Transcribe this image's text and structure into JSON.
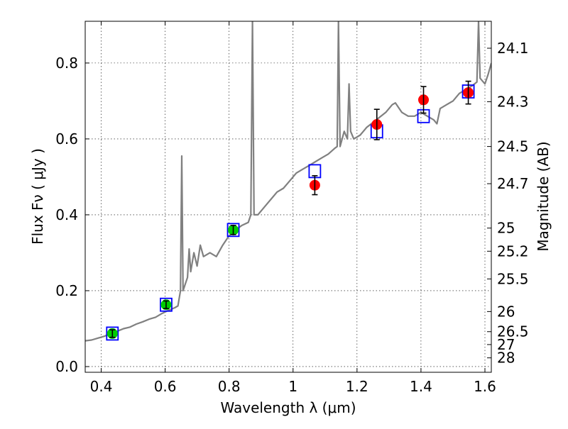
{
  "chart_data": {
    "type": "scatter",
    "title": "",
    "xlabel": "Wavelength  λ (μm)",
    "ylabel": "Flux  Fν  ( μJy )",
    "ylabel_right": "Magnitude (AB)",
    "xlim": [
      0.35,
      1.62
    ],
    "ylim": [
      -0.015,
      0.91
    ],
    "grid": true,
    "x_ticks": [
      {
        "value": 0.4,
        "label": "0.4"
      },
      {
        "value": 0.6,
        "label": "0.6"
      },
      {
        "value": 0.8,
        "label": "0.8"
      },
      {
        "value": 1.0,
        "label": "1"
      },
      {
        "value": 1.2,
        "label": "1.2"
      },
      {
        "value": 1.4,
        "label": "1.4"
      },
      {
        "value": 1.6,
        "label": "1.6"
      }
    ],
    "y_ticks": [
      {
        "value": 0.0,
        "label": "0.0"
      },
      {
        "value": 0.2,
        "label": "0.2"
      },
      {
        "value": 0.4,
        "label": "0.4"
      },
      {
        "value": 0.6,
        "label": "0.6"
      },
      {
        "value": 0.8,
        "label": "0.8"
      }
    ],
    "right_ticks": [
      {
        "label": "24.1",
        "flux": 0.839
      },
      {
        "label": "24.3",
        "flux": 0.698
      },
      {
        "label": "24.5",
        "flux": 0.58
      },
      {
        "label": "24.7",
        "flux": 0.482
      },
      {
        "label": "25",
        "flux": 0.365
      },
      {
        "label": "25.2",
        "flux": 0.304
      },
      {
        "label": "25.5",
        "flux": 0.231
      },
      {
        "label": "26",
        "flux": 0.145
      },
      {
        "label": "26.5",
        "flux": 0.092
      },
      {
        "label": "27",
        "flux": 0.058
      },
      {
        "label": "28",
        "flux": 0.023
      }
    ],
    "series": [
      {
        "kind": "line",
        "color": "#808080",
        "points": [
          [
            0.35,
            0.068
          ],
          [
            0.37,
            0.07
          ],
          [
            0.39,
            0.075
          ],
          [
            0.41,
            0.08
          ],
          [
            0.43,
            0.088
          ],
          [
            0.45,
            0.093
          ],
          [
            0.47,
            0.1
          ],
          [
            0.49,
            0.104
          ],
          [
            0.51,
            0.112
          ],
          [
            0.53,
            0.118
          ],
          [
            0.55,
            0.125
          ],
          [
            0.57,
            0.13
          ],
          [
            0.59,
            0.14
          ],
          [
            0.61,
            0.148
          ],
          [
            0.63,
            0.155
          ],
          [
            0.64,
            0.16
          ],
          [
            0.648,
            0.2
          ],
          [
            0.652,
            0.555
          ],
          [
            0.656,
            0.2
          ],
          [
            0.66,
            0.21
          ],
          [
            0.67,
            0.235
          ],
          [
            0.675,
            0.31
          ],
          [
            0.68,
            0.25
          ],
          [
            0.69,
            0.3
          ],
          [
            0.7,
            0.265
          ],
          [
            0.71,
            0.32
          ],
          [
            0.72,
            0.29
          ],
          [
            0.74,
            0.3
          ],
          [
            0.76,
            0.29
          ],
          [
            0.78,
            0.32
          ],
          [
            0.8,
            0.345
          ],
          [
            0.82,
            0.36
          ],
          [
            0.84,
            0.372
          ],
          [
            0.86,
            0.38
          ],
          [
            0.868,
            0.4
          ],
          [
            0.873,
            0.91
          ],
          [
            0.878,
            0.4
          ],
          [
            0.89,
            0.4
          ],
          [
            0.91,
            0.42
          ],
          [
            0.93,
            0.44
          ],
          [
            0.95,
            0.46
          ],
          [
            0.97,
            0.47
          ],
          [
            0.99,
            0.49
          ],
          [
            1.01,
            0.51
          ],
          [
            1.03,
            0.52
          ],
          [
            1.05,
            0.53
          ],
          [
            1.07,
            0.54
          ],
          [
            1.09,
            0.55
          ],
          [
            1.11,
            0.56
          ],
          [
            1.13,
            0.575
          ],
          [
            1.138,
            0.58
          ],
          [
            1.142,
            0.91
          ],
          [
            1.147,
            0.58
          ],
          [
            1.16,
            0.62
          ],
          [
            1.17,
            0.6
          ],
          [
            1.175,
            0.745
          ],
          [
            1.18,
            0.62
          ],
          [
            1.19,
            0.6
          ],
          [
            1.21,
            0.61
          ],
          [
            1.23,
            0.63
          ],
          [
            1.26,
            0.65
          ],
          [
            1.29,
            0.67
          ],
          [
            1.31,
            0.69
          ],
          [
            1.32,
            0.695
          ],
          [
            1.34,
            0.67
          ],
          [
            1.36,
            0.66
          ],
          [
            1.38,
            0.66
          ],
          [
            1.4,
            0.67
          ],
          [
            1.42,
            0.66
          ],
          [
            1.44,
            0.65
          ],
          [
            1.45,
            0.64
          ],
          [
            1.46,
            0.68
          ],
          [
            1.48,
            0.69
          ],
          [
            1.5,
            0.7
          ],
          [
            1.52,
            0.72
          ],
          [
            1.54,
            0.73
          ],
          [
            1.56,
            0.74
          ],
          [
            1.575,
            0.75
          ],
          [
            1.58,
            0.91
          ],
          [
            1.585,
            0.76
          ],
          [
            1.6,
            0.745
          ],
          [
            1.61,
            0.77
          ],
          [
            1.62,
            0.8
          ]
        ]
      },
      {
        "kind": "model_boxes",
        "color": "#0000ff",
        "points": [
          [
            0.435,
            0.087
          ],
          [
            0.603,
            0.163
          ],
          [
            0.813,
            0.36
          ],
          [
            1.068,
            0.515
          ],
          [
            1.262,
            0.62
          ],
          [
            1.408,
            0.66
          ],
          [
            1.548,
            0.725
          ]
        ]
      },
      {
        "kind": "points",
        "color": "#00cc00",
        "points": [
          {
            "x": 0.435,
            "y": 0.087,
            "err": 0.01
          },
          {
            "x": 0.603,
            "y": 0.163,
            "err": 0.01
          },
          {
            "x": 0.813,
            "y": 0.36,
            "err": 0.012
          }
        ]
      },
      {
        "kind": "points",
        "color": "#ff0000",
        "points": [
          {
            "x": 1.068,
            "y": 0.478,
            "err": 0.025
          },
          {
            "x": 1.262,
            "y": 0.638,
            "err": 0.04
          },
          {
            "x": 1.408,
            "y": 0.703,
            "err": 0.035
          },
          {
            "x": 1.548,
            "y": 0.722,
            "err": 0.03
          }
        ]
      }
    ]
  }
}
